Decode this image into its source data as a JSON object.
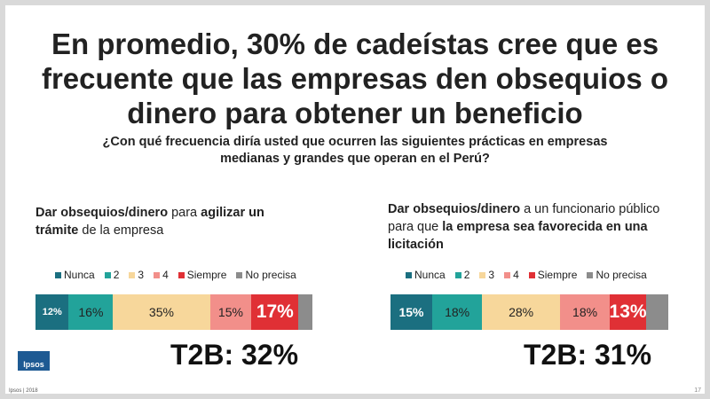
{
  "title": "En promedio, 30% de cadeístas cree que es frecuente que las empresas den obsequios o dinero para obtener un beneficio",
  "subtitle": "¿Con qué frecuencia diría usted que ocurren las siguientes prácticas en empresas medianas y grandes que operan en el Perú?",
  "panels": {
    "left": {
      "title_parts": [
        {
          "text": "Dar obsequios/dinero",
          "bold": true
        },
        {
          "text": " para ",
          "bold": false
        },
        {
          "text": "agilizar un trámite",
          "bold": true
        },
        {
          "text": " de la empresa",
          "bold": false
        }
      ],
      "t2b": "T2B: 32%"
    },
    "right": {
      "title_parts": [
        {
          "text": "Dar obsequios/dinero",
          "bold": true
        },
        {
          "text": " a un funcionario público para que ",
          "bold": false
        },
        {
          "text": "la empresa sea favorecida en una licitación",
          "bold": true
        }
      ],
      "t2b": "T2B: 31%"
    }
  },
  "legend": [
    {
      "label": "Nunca",
      "color": "#1b6f80"
    },
    {
      "label": "2",
      "color": "#22a39a"
    },
    {
      "label": "3",
      "color": "#f7d79b"
    },
    {
      "label": "4",
      "color": "#f28f8a"
    },
    {
      "label": "Siempre",
      "color": "#e03035"
    },
    {
      "label": "No precisa",
      "color": "#8c8c8c"
    }
  ],
  "chart_data": [
    {
      "type": "bar",
      "orientation": "horizontal-stacked-100",
      "title": "Dar obsequios/dinero para agilizar un trámite de la empresa",
      "categories": [
        "Nunca",
        "2",
        "3",
        "4",
        "Siempre",
        "No precisa"
      ],
      "values": [
        12,
        16,
        35,
        15,
        17,
        5
      ],
      "labels": [
        "12%",
        "16%",
        "35%",
        "15%",
        "17%",
        ""
      ],
      "annotation": "T2B: 32%"
    },
    {
      "type": "bar",
      "orientation": "horizontal-stacked-100",
      "title": "Dar obsequios/dinero a un funcionario público para que la empresa sea favorecida en una licitación",
      "categories": [
        "Nunca",
        "2",
        "3",
        "4",
        "Siempre",
        "No precisa"
      ],
      "values": [
        15,
        18,
        28,
        18,
        13,
        8
      ],
      "labels": [
        "15%",
        "18%",
        "28%",
        "18%",
        "13%",
        ""
      ],
      "annotation": "T2B: 31%"
    }
  ],
  "footer": "Ipsos | 2018",
  "page_number": "17",
  "logo_text": "Ipsos"
}
